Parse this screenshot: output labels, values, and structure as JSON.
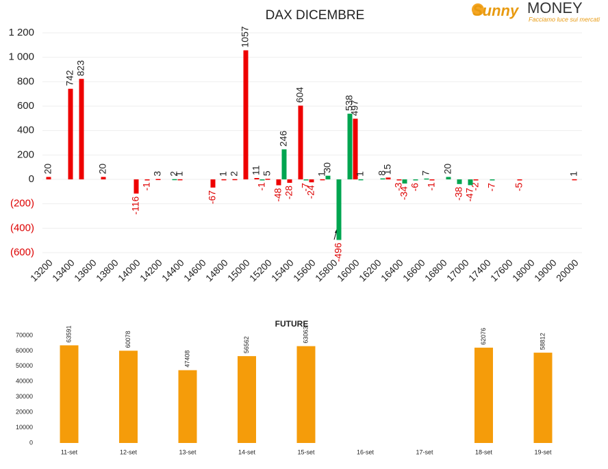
{
  "logo": {
    "name1": "Sunny",
    "name2": "MONEY",
    "tagline": "Facciamo luce sui mercati"
  },
  "chart_data": [
    {
      "type": "bar",
      "title": "DAX DICEMBRE",
      "categories": [
        "13200",
        null,
        "13400",
        null,
        "13600",
        null,
        "13800",
        null,
        "14000",
        null,
        "14200",
        null,
        "14400",
        null,
        "14600",
        null,
        "14800",
        null,
        "15000",
        null,
        "15200",
        null,
        "15400",
        null,
        "15600",
        null,
        "15800",
        null,
        "16000",
        null,
        "16200",
        null,
        "16400",
        null,
        "16600",
        null,
        "16800",
        null,
        "17000",
        null,
        "17400",
        null,
        "17600",
        null,
        "18000",
        null,
        "19000",
        null,
        "20000"
      ],
      "series": [
        {
          "color": "#ee0000",
          "values": [
            20,
            null,
            742,
            823,
            null,
            20,
            null,
            null,
            -116,
            -1,
            3,
            null,
            1,
            null,
            null,
            -67,
            1,
            2,
            1057,
            11,
            5,
            -48,
            -28,
            604,
            -24,
            1,
            null,
            null,
            497,
            null,
            null,
            15,
            -3,
            null,
            null,
            -1,
            null,
            null,
            null,
            -2,
            null,
            null,
            null,
            -5,
            null,
            null,
            null,
            null,
            1
          ]
        },
        {
          "color": "#00a550",
          "values": [
            null,
            null,
            null,
            null,
            null,
            null,
            null,
            null,
            null,
            null,
            null,
            2,
            null,
            null,
            null,
            null,
            null,
            null,
            null,
            -1,
            null,
            246,
            null,
            -7,
            null,
            30,
            -496,
            538,
            1,
            null,
            8,
            null,
            -34,
            -6,
            7,
            null,
            20,
            -38,
            -47,
            null,
            -7,
            null,
            null,
            null,
            null,
            null,
            null,
            null,
            null
          ]
        }
      ],
      "ylim": [
        -600,
        1200
      ],
      "yticks": [
        {
          "value": -600,
          "label": "(600)"
        },
        {
          "value": -400,
          "label": "(400)"
        },
        {
          "value": -200,
          "label": "(200)"
        },
        0,
        200,
        400,
        600,
        800,
        {
          "value": 1000,
          "label": "1 000"
        },
        {
          "value": 1200,
          "label": "1 200"
        }
      ],
      "grid": true
    },
    {
      "type": "bar",
      "title": "FUTURE",
      "categories": [
        "11-set",
        "12-set",
        "13-set",
        "14-set",
        "15-set",
        "16-set",
        "17-set",
        "18-set",
        "19-set"
      ],
      "values": [
        63591,
        60078,
        47408,
        56562,
        63063,
        null,
        null,
        62076,
        58812
      ],
      "color": "#f59c0a",
      "ylim": [
        0,
        70000
      ],
      "yticks": [
        0,
        10000,
        20000,
        30000,
        40000,
        50000,
        60000,
        70000
      ],
      "grid": false
    }
  ]
}
